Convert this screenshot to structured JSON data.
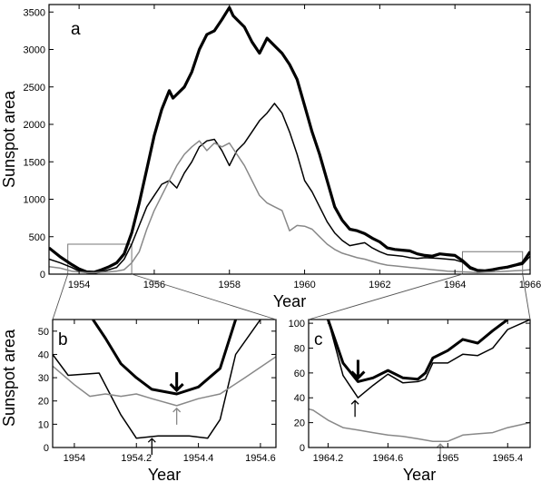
{
  "figure": {
    "y_axis_label": "Sunspot area"
  },
  "chart_data": [
    {
      "panel": "a",
      "type": "line",
      "xlabel": "Year",
      "ylabel": "Sunspot area",
      "xlim": [
        1953.2,
        1966.0
      ],
      "ylim": [
        0,
        3600
      ],
      "xticks": [
        1954,
        1956,
        1958,
        1960,
        1962,
        1964,
        1966
      ],
      "yticks": [
        0,
        500,
        1000,
        1500,
        2000,
        2500,
        3000,
        3500
      ],
      "grid": false,
      "inset_boxes": [
        {
          "x": [
            1953.7,
            1955.4
          ],
          "y": [
            0,
            400
          ]
        },
        {
          "x": [
            1964.2,
            1965.8
          ],
          "y": [
            0,
            300
          ]
        }
      ],
      "series": [
        {
          "color": "#000000",
          "stroke": "thick",
          "x": [
            1953.2,
            1953.5,
            1953.8,
            1954.0,
            1954.2,
            1954.4,
            1954.6,
            1954.8,
            1955.0,
            1955.2,
            1955.4,
            1955.6,
            1955.8,
            1956.0,
            1956.2,
            1956.4,
            1956.5,
            1956.6,
            1956.8,
            1957.0,
            1957.2,
            1957.4,
            1957.6,
            1957.8,
            1958.0,
            1958.1,
            1958.2,
            1958.4,
            1958.6,
            1958.8,
            1959.0,
            1959.2,
            1959.4,
            1959.6,
            1959.8,
            1960.0,
            1960.2,
            1960.4,
            1960.6,
            1960.8,
            1961.0,
            1961.2,
            1961.4,
            1961.6,
            1961.8,
            1962.0,
            1962.2,
            1962.4,
            1962.6,
            1962.8,
            1963.0,
            1963.2,
            1963.4,
            1963.6,
            1963.8,
            1964.0,
            1964.2,
            1964.4,
            1964.6,
            1964.8,
            1965.0,
            1965.2,
            1965.4,
            1965.6,
            1965.8,
            1966.0
          ],
          "y": [
            350,
            230,
            130,
            70,
            30,
            25,
            60,
            100,
            150,
            270,
            550,
            950,
            1400,
            1850,
            2200,
            2450,
            2350,
            2400,
            2500,
            2700,
            3000,
            3200,
            3250,
            3400,
            3560,
            3450,
            3400,
            3300,
            3100,
            2950,
            3150,
            3050,
            2950,
            2800,
            2600,
            2250,
            1900,
            1600,
            1250,
            900,
            720,
            600,
            580,
            540,
            480,
            430,
            350,
            330,
            320,
            310,
            270,
            250,
            240,
            270,
            260,
            250,
            180,
            90,
            50,
            45,
            60,
            80,
            95,
            120,
            150,
            300
          ]
        },
        {
          "color": "#000000",
          "stroke": "thin",
          "x": [
            1953.2,
            1953.5,
            1953.8,
            1954.0,
            1954.2,
            1954.4,
            1954.6,
            1954.8,
            1955.0,
            1955.2,
            1955.4,
            1955.6,
            1955.8,
            1956.0,
            1956.2,
            1956.4,
            1956.6,
            1956.8,
            1957.0,
            1957.2,
            1957.4,
            1957.6,
            1957.8,
            1958.0,
            1958.2,
            1958.4,
            1958.6,
            1958.8,
            1959.0,
            1959.2,
            1959.4,
            1959.6,
            1959.8,
            1960.0,
            1960.2,
            1960.4,
            1960.6,
            1960.8,
            1961.0,
            1961.2,
            1961.4,
            1961.6,
            1961.8,
            1962.0,
            1962.2,
            1962.4,
            1962.6,
            1962.8,
            1963.0,
            1963.2,
            1963.4,
            1963.6,
            1963.8,
            1964.0,
            1964.2,
            1964.4,
            1964.6,
            1964.8,
            1965.0,
            1965.2,
            1965.4,
            1965.6,
            1965.8,
            1966.0
          ],
          "y": [
            200,
            150,
            90,
            40,
            20,
            10,
            30,
            60,
            90,
            200,
            400,
            650,
            900,
            1050,
            1200,
            1250,
            1150,
            1350,
            1500,
            1700,
            1780,
            1800,
            1650,
            1450,
            1650,
            1750,
            1900,
            2050,
            2150,
            2280,
            2150,
            1900,
            1600,
            1250,
            1100,
            900,
            700,
            550,
            450,
            380,
            400,
            420,
            350,
            300,
            260,
            250,
            240,
            220,
            210,
            220,
            215,
            210,
            200,
            190,
            160,
            70,
            40,
            35,
            50,
            70,
            85,
            110,
            130,
            240
          ]
        },
        {
          "color": "#888888",
          "stroke": "thin",
          "x": [
            1953.2,
            1953.5,
            1953.8,
            1954.0,
            1954.2,
            1954.4,
            1954.6,
            1954.8,
            1955.0,
            1955.2,
            1955.4,
            1955.6,
            1955.8,
            1956.0,
            1956.2,
            1956.4,
            1956.6,
            1956.8,
            1957.0,
            1957.2,
            1957.4,
            1957.6,
            1957.8,
            1958.0,
            1958.2,
            1958.4,
            1958.6,
            1958.8,
            1959.0,
            1959.2,
            1959.4,
            1959.6,
            1959.8,
            1960.0,
            1960.2,
            1960.4,
            1960.6,
            1960.8,
            1961.0,
            1961.2,
            1961.4,
            1961.6,
            1961.8,
            1962.0,
            1962.2,
            1962.4,
            1962.6,
            1962.8,
            1963.0,
            1963.2,
            1963.4,
            1963.6,
            1963.8,
            1964.0,
            1964.2,
            1964.4,
            1964.6,
            1964.8,
            1965.0,
            1965.2,
            1965.4,
            1965.6,
            1965.8,
            1966.0
          ],
          "y": [
            100,
            80,
            40,
            30,
            20,
            20,
            25,
            30,
            40,
            60,
            150,
            300,
            600,
            850,
            1050,
            1250,
            1450,
            1600,
            1700,
            1780,
            1650,
            1750,
            1700,
            1750,
            1600,
            1450,
            1250,
            1050,
            950,
            900,
            850,
            580,
            650,
            640,
            600,
            500,
            400,
            330,
            280,
            250,
            220,
            200,
            170,
            140,
            120,
            110,
            100,
            90,
            80,
            70,
            60,
            50,
            40,
            35,
            30,
            25,
            20,
            25,
            30,
            35,
            40,
            45,
            50,
            60
          ]
        }
      ]
    },
    {
      "panel": "b",
      "type": "line",
      "xlabel": "Year",
      "ylabel": "Sunspot area",
      "xlim": [
        1953.93,
        1954.65
      ],
      "ylim": [
        0,
        55
      ],
      "xticks": [
        1954,
        1954.2,
        1954.4,
        1954.6
      ],
      "xtick_labels": [
        "1954",
        "1954.2",
        "1954.4",
        "1954.6"
      ],
      "yticks": [
        0,
        10,
        20,
        30,
        40,
        50
      ],
      "grid": false,
      "series": [
        {
          "color": "#000000",
          "stroke": "thick",
          "x": [
            1954.06,
            1954.1,
            1954.15,
            1954.2,
            1954.25,
            1954.33,
            1954.4,
            1954.47,
            1954.52
          ],
          "y": [
            55,
            47,
            36,
            30,
            25,
            23,
            26,
            34,
            55
          ]
        },
        {
          "color": "#000000",
          "stroke": "thin",
          "x": [
            1953.93,
            1953.98,
            1954.08,
            1954.15,
            1954.2,
            1954.27,
            1954.37,
            1954.43,
            1954.47,
            1954.52,
            1954.6
          ],
          "y": [
            40,
            31,
            32,
            14,
            4,
            5,
            5,
            4,
            12,
            40,
            55
          ]
        },
        {
          "color": "#888888",
          "stroke": "thin",
          "x": [
            1953.93,
            1954.0,
            1954.05,
            1954.1,
            1954.15,
            1954.2,
            1954.25,
            1954.33,
            1954.4,
            1954.47,
            1954.55,
            1954.65
          ],
          "y": [
            35,
            27,
            22,
            23,
            22,
            23,
            21,
            18,
            21,
            23,
            30,
            39
          ]
        }
      ],
      "markers": [
        {
          "x": 1954.33,
          "y": 23,
          "color": "#000000",
          "stroke": "thick"
        },
        {
          "x": 1954.25,
          "y": 5,
          "color": "#000000",
          "stroke": "thin"
        },
        {
          "x": 1954.33,
          "y": 18,
          "color": "#888888",
          "stroke": "thin"
        }
      ]
    },
    {
      "panel": "c",
      "type": "line",
      "xlabel": "Year",
      "ylabel": "",
      "xlim": [
        1964.07,
        1965.55
      ],
      "ylim": [
        0,
        103
      ],
      "xticks": [
        1964.2,
        1964.6,
        1965,
        1965.4
      ],
      "xtick_labels": [
        "1964.2",
        "1964.6",
        "1965",
        "1965.4"
      ],
      "yticks": [
        0,
        20,
        40,
        60,
        80,
        100
      ],
      "grid": false,
      "series": [
        {
          "color": "#000000",
          "stroke": "thick",
          "x": [
            1964.2,
            1964.3,
            1964.4,
            1964.5,
            1964.6,
            1964.7,
            1964.8,
            1964.85,
            1964.9,
            1965.0,
            1965.1,
            1965.2,
            1965.3,
            1965.4
          ],
          "y": [
            103,
            68,
            53,
            56,
            62,
            56,
            55,
            60,
            72,
            78,
            87,
            84,
            94,
            103
          ]
        },
        {
          "color": "#000000",
          "stroke": "thin",
          "x": [
            1964.2,
            1964.3,
            1964.4,
            1964.5,
            1964.6,
            1964.7,
            1964.8,
            1964.85,
            1964.9,
            1965.0,
            1965.1,
            1965.2,
            1965.3,
            1965.4,
            1965.55
          ],
          "y": [
            103,
            58,
            40,
            50,
            59,
            52,
            53,
            55,
            68,
            68,
            75,
            74,
            80,
            95,
            103
          ]
        },
        {
          "color": "#888888",
          "stroke": "thin",
          "x": [
            1964.07,
            1964.1,
            1964.2,
            1964.3,
            1964.4,
            1964.5,
            1964.6,
            1964.7,
            1964.8,
            1964.9,
            1965.0,
            1965.1,
            1965.2,
            1965.3,
            1965.4,
            1965.55
          ],
          "y": [
            31,
            30,
            22,
            16,
            14,
            12,
            10,
            9,
            7,
            5,
            5,
            10,
            11,
            12,
            16,
            20
          ]
        }
      ],
      "markers": [
        {
          "x": 1964.4,
          "y": 53,
          "color": "#000000",
          "stroke": "thick"
        },
        {
          "x": 1964.38,
          "y": 40,
          "color": "#000000",
          "stroke": "thin"
        },
        {
          "x": 1964.95,
          "y": 5,
          "color": "#888888",
          "stroke": "thin"
        }
      ]
    }
  ]
}
